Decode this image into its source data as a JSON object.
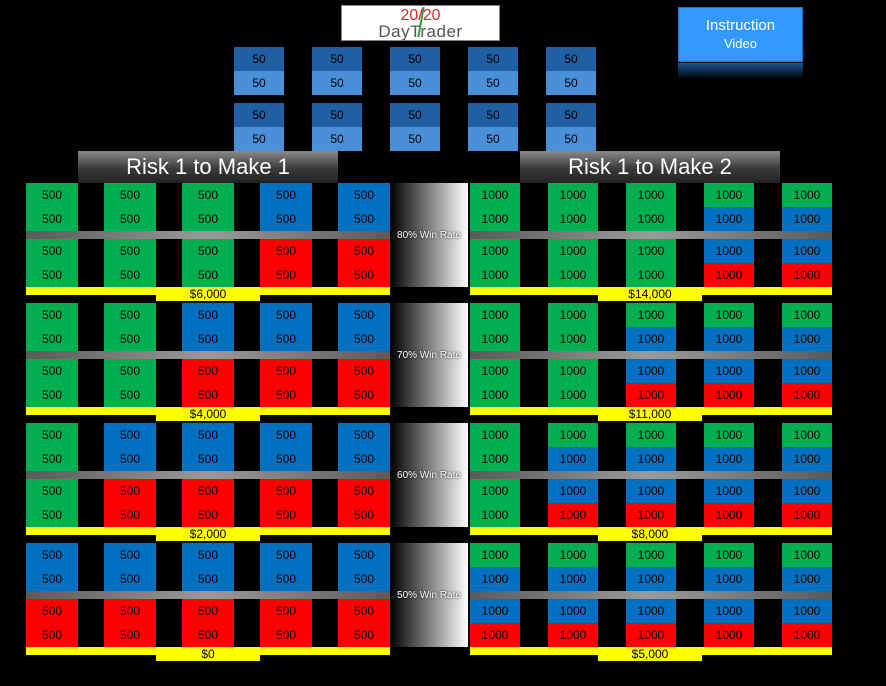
{
  "logo": {
    "line1": "20/20",
    "line2": "DayTrader"
  },
  "instruction": {
    "line1": "Instruction",
    "line2": "Video"
  },
  "top_grid": [
    "50",
    "50",
    "50",
    "50",
    "50",
    "50",
    "50",
    "50",
    "50",
    "50",
    "50",
    "50",
    "50",
    "50",
    "50",
    "50",
    "50",
    "50",
    "50",
    "50"
  ],
  "left_title": "Risk 1 to Make 1",
  "right_title": "Risk 1 to Make 2",
  "left_value": "500",
  "right_value": "1000",
  "colors": {
    "win": "#00b050",
    "loss_draw": "#0070c0",
    "loss": "#ff0000",
    "highlight": "#ffff00"
  },
  "blocks": [
    {
      "win_rate": "80% Win Rate",
      "left_total": "$6,000",
      "right_total": "$14,000"
    },
    {
      "win_rate": "70% Win Rate",
      "left_total": "$4,000",
      "right_total": "$11,000"
    },
    {
      "win_rate": "60% Win Rate",
      "left_total": "$2,000",
      "right_total": "$8,000"
    },
    {
      "win_rate": "50% Win Rate",
      "left_total": "$0",
      "right_total": "$5,000"
    }
  ],
  "left_patterns": [
    [
      [
        "G",
        "G",
        "G",
        "B",
        "B"
      ],
      [
        "G",
        "G",
        "G",
        "B",
        "B"
      ],
      [
        "G",
        "G",
        "G",
        "R",
        "R"
      ],
      [
        "G",
        "G",
        "G",
        "R",
        "R"
      ]
    ],
    [
      [
        "G",
        "G",
        "B",
        "B",
        "B"
      ],
      [
        "G",
        "G",
        "B",
        "B",
        "B"
      ],
      [
        "G",
        "G",
        "R",
        "R",
        "R"
      ],
      [
        "G",
        "G",
        "R",
        "R",
        "R"
      ]
    ],
    [
      [
        "G",
        "B",
        "B",
        "B",
        "B"
      ],
      [
        "G",
        "B",
        "B",
        "B",
        "B"
      ],
      [
        "G",
        "R",
        "R",
        "R",
        "R"
      ],
      [
        "G",
        "R",
        "R",
        "R",
        "R"
      ]
    ],
    [
      [
        "B",
        "B",
        "B",
        "B",
        "B"
      ],
      [
        "B",
        "B",
        "B",
        "B",
        "B"
      ],
      [
        "R",
        "R",
        "R",
        "R",
        "R"
      ],
      [
        "R",
        "R",
        "R",
        "R",
        "R"
      ]
    ]
  ],
  "right_patterns": [
    [
      [
        "G",
        "G",
        "G",
        "G",
        "G"
      ],
      [
        "G",
        "G",
        "G",
        "B",
        "B"
      ],
      [
        "G",
        "G",
        "G",
        "B",
        "B"
      ],
      [
        "G",
        "G",
        "G",
        "R",
        "R"
      ]
    ],
    [
      [
        "G",
        "G",
        "G",
        "G",
        "G"
      ],
      [
        "G",
        "G",
        "B",
        "B",
        "B"
      ],
      [
        "G",
        "G",
        "B",
        "B",
        "B"
      ],
      [
        "G",
        "G",
        "R",
        "R",
        "R"
      ]
    ],
    [
      [
        "G",
        "G",
        "G",
        "G",
        "G"
      ],
      [
        "G",
        "B",
        "B",
        "B",
        "B"
      ],
      [
        "G",
        "B",
        "B",
        "B",
        "B"
      ],
      [
        "G",
        "R",
        "R",
        "R",
        "R"
      ]
    ],
    [
      [
        "G",
        "G",
        "G",
        "G",
        "G"
      ],
      [
        "B",
        "B",
        "B",
        "B",
        "B"
      ],
      [
        "B",
        "B",
        "B",
        "B",
        "B"
      ],
      [
        "R",
        "R",
        "R",
        "R",
        "R"
      ]
    ]
  ]
}
